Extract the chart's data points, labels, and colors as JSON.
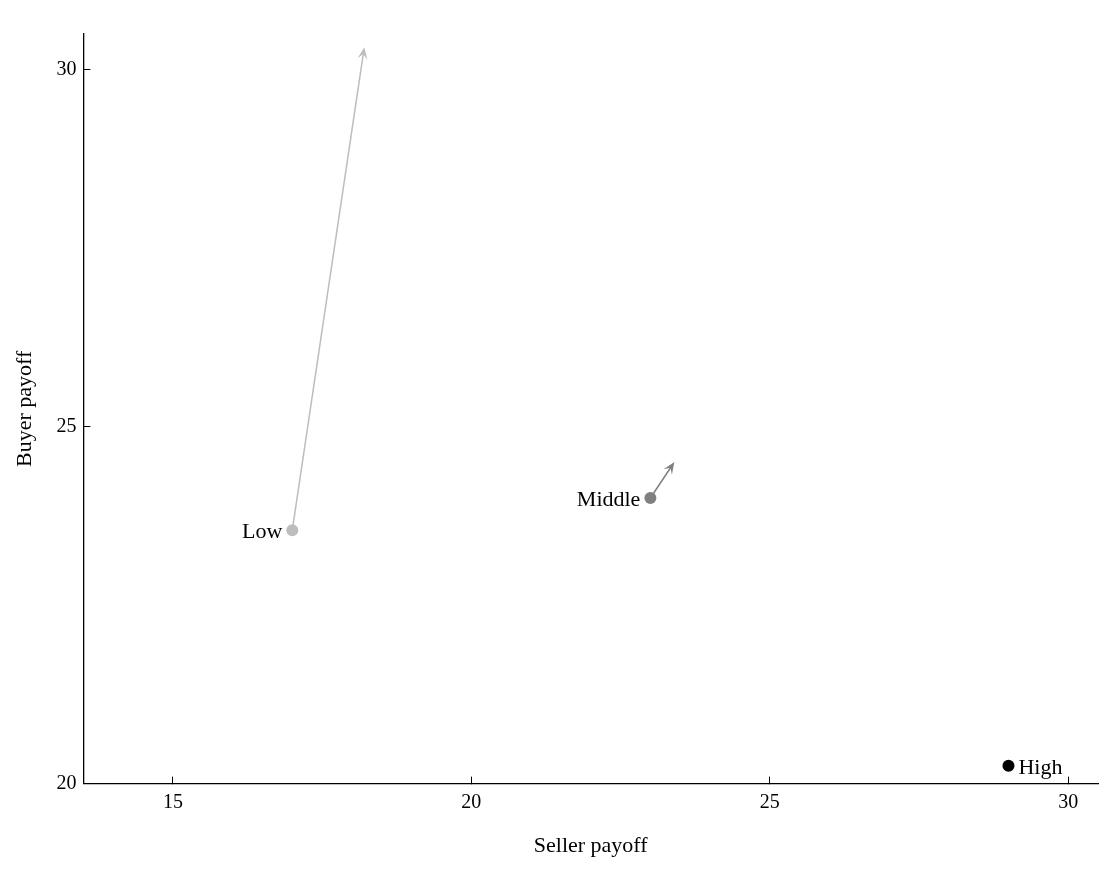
{
  "chart_data": {
    "type": "scatter",
    "xlabel": "Seller payoff",
    "ylabel": "Buyer payoff",
    "xlim": [
      13.5,
      30.5
    ],
    "ylim": [
      20,
      30.5
    ],
    "xticks": [
      15,
      20,
      25,
      30
    ],
    "yticks": [
      20,
      25,
      30
    ],
    "grid": false,
    "legend": false,
    "marker": "circle",
    "series": [
      {
        "name": "Low",
        "color": "#bdbdbd",
        "x": [
          17
        ],
        "values": [
          23.55
        ]
      },
      {
        "name": "Middle",
        "color": "#808080",
        "x": [
          23
        ],
        "values": [
          24
        ]
      },
      {
        "name": "High",
        "color": "#000000",
        "x": [
          29
        ],
        "values": [
          20.25
        ]
      }
    ]
  }
}
